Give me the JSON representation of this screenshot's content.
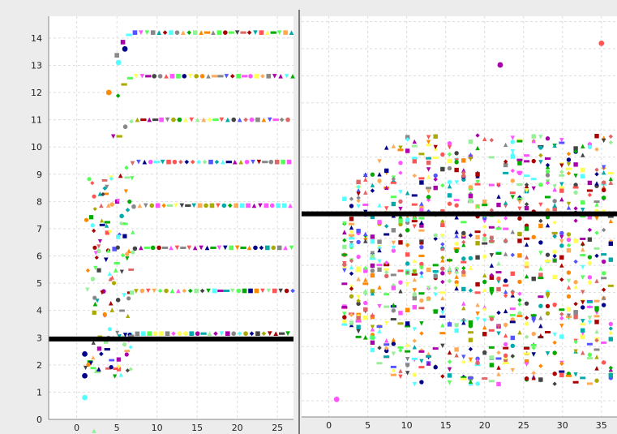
{
  "chart_data": [
    {
      "type": "scatter",
      "title": "",
      "xlabel": "",
      "ylabel": "",
      "xlim": [
        -3.5,
        27
      ],
      "ylim": [
        0,
        14.8
      ],
      "xticks": [
        0,
        5,
        10,
        15,
        20,
        25
      ],
      "yticks": [
        0,
        1,
        2,
        3,
        4,
        5,
        6,
        7,
        8,
        9,
        10,
        11,
        12,
        13,
        14
      ],
      "grid": true,
      "legend": "none",
      "reference_line": {
        "y": 2.95,
        "color": "#000000"
      },
      "plateaus": [
        14.2,
        12.6,
        11.0,
        9.45,
        7.85,
        6.3,
        4.72,
        3.15
      ],
      "highlight_points": [
        {
          "x": 1,
          "y": 0.8
        },
        {
          "x": 1,
          "y": 1.6
        },
        {
          "x": 1,
          "y": 2.4
        },
        {
          "x": 5.2,
          "y": 13.1
        },
        {
          "x": 4,
          "y": 12.0
        },
        {
          "x": 6,
          "y": 13.6
        }
      ],
      "series": [
        {
          "values": []
        }
      ]
    },
    {
      "type": "scatter",
      "title": "",
      "xlabel": "",
      "ylabel": "",
      "xlim": [
        -3.5,
        37
      ],
      "ylim": [
        0.4,
        15.2
      ],
      "xticks": [
        0,
        5,
        10,
        15,
        20,
        25,
        30,
        35
      ],
      "yticks": [],
      "grid": true,
      "legend": "none",
      "reference_line": {
        "y": 7.9,
        "color": "#000000"
      },
      "dense_band": {
        "x_range": [
          1,
          37
        ],
        "y_center": 6.2,
        "y_spread": 4.6
      },
      "highlight_points": [
        {
          "x": 1,
          "y": 1.05
        },
        {
          "x": 35,
          "y": 14.2
        },
        {
          "x": 22,
          "y": 13.4
        }
      ]
    }
  ],
  "colors": {
    "palette": [
      "#ff55ff",
      "#55ffff",
      "#ffff55",
      "#55ff55",
      "#ff5555",
      "#5555ff",
      "#ff8800",
      "#888888",
      "#aa00aa",
      "#00aaaa",
      "#aaaa00",
      "#00aa00",
      "#aa0000",
      "#000088",
      "#444444",
      "#dd6666",
      "#99ee99",
      "#ffaa55"
    ],
    "reference_line": "#000000",
    "plot_background": "#ffffff",
    "grid": "#dddddd",
    "window_background": "#ececec"
  }
}
